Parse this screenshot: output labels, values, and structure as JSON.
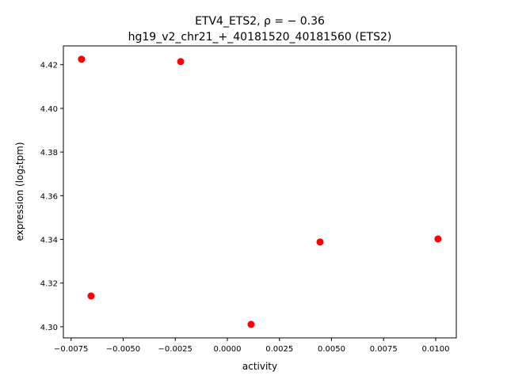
{
  "chart_data": {
    "type": "scatter",
    "title_line1": "ETV4_ETS2, ρ = − 0.36",
    "title_line2": "hg19_v2_chr21_+_40181520_40181560 (ETS2)",
    "xlabel": "activity",
    "ylabel": "expression (log₂tpm)",
    "xlim": [
      -0.00787,
      0.01099
    ],
    "ylim": [
      4.2949,
      4.4286
    ],
    "xticks": [
      -0.0075,
      -0.005,
      -0.0025,
      0.0,
      0.0025,
      0.005,
      0.0075,
      0.01
    ],
    "xtick_labels": [
      "−0.0075",
      "−0.0050",
      "−0.0025",
      "0.0000",
      "0.0025",
      "0.0050",
      "0.0075",
      "0.0100"
    ],
    "yticks": [
      4.3,
      4.32,
      4.34,
      4.36,
      4.38,
      4.4,
      4.42
    ],
    "ytick_labels": [
      "4.30",
      "4.32",
      "4.34",
      "4.36",
      "4.38",
      "4.40",
      "4.42"
    ],
    "grid": false,
    "point_color": "#ff0000",
    "x": [
      -0.007,
      -0.00224,
      -0.00654,
      0.00114,
      0.00445,
      0.01011
    ],
    "y": [
      4.4225,
      4.4214,
      4.3141,
      4.3011,
      4.3388,
      4.3402
    ]
  }
}
